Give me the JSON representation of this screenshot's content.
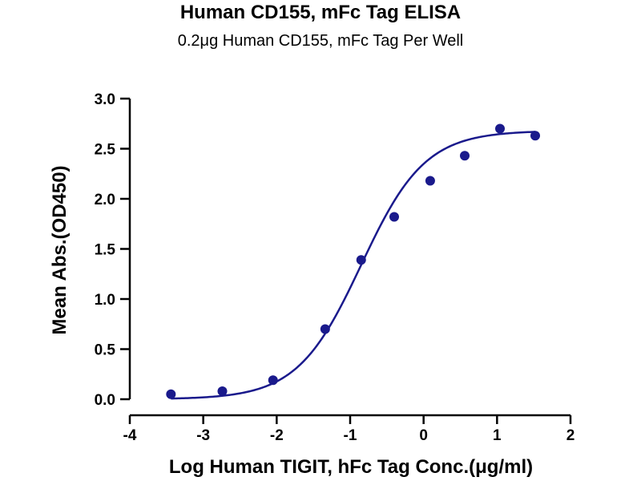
{
  "chart_data": {
    "type": "scatter",
    "title": "Human CD155, mFc Tag ELISA",
    "subtitle": "0.2μg Human CD155, mFc Tag Per Well",
    "xlabel": "Log Human TIGIT, hFc Tag Conc.(μg/ml)",
    "ylabel": "Mean Abs.(OD450)",
    "xlim": [
      -4,
      2
    ],
    "ylim": [
      0,
      3
    ],
    "x_ticks": [
      -4,
      -3,
      -2,
      -1,
      0,
      1,
      2
    ],
    "x_tick_labels": [
      "-4",
      "-3",
      "-2",
      "-1",
      "0",
      "1",
      "2"
    ],
    "y_ticks": [
      0,
      0.5,
      1,
      1.5,
      2,
      2.5,
      3
    ],
    "y_tick_labels": [
      "0.0",
      "0.5",
      "1.0",
      "1.5",
      "2.0",
      "2.5",
      "3.0"
    ],
    "grid": false,
    "legend": "none",
    "series": [
      {
        "points": [
          {
            "x": -3.44,
            "y": 0.05
          },
          {
            "x": -2.74,
            "y": 0.08
          },
          {
            "x": -2.05,
            "y": 0.19
          },
          {
            "x": -1.34,
            "y": 0.7
          },
          {
            "x": -0.85,
            "y": 1.39
          },
          {
            "x": -0.4,
            "y": 1.82
          },
          {
            "x": 0.09,
            "y": 2.18
          },
          {
            "x": 0.56,
            "y": 2.43
          },
          {
            "x": 1.04,
            "y": 2.7
          },
          {
            "x": 1.52,
            "y": 2.63
          }
        ],
        "fit_curve": {
          "model": "4PL",
          "bottom": 0.0,
          "top": 2.68,
          "log_ec50": -0.85,
          "hill_slope": 1.0,
          "x_range": [
            -3.44,
            1.52
          ]
        },
        "color": "#1a1a8c"
      }
    ]
  }
}
